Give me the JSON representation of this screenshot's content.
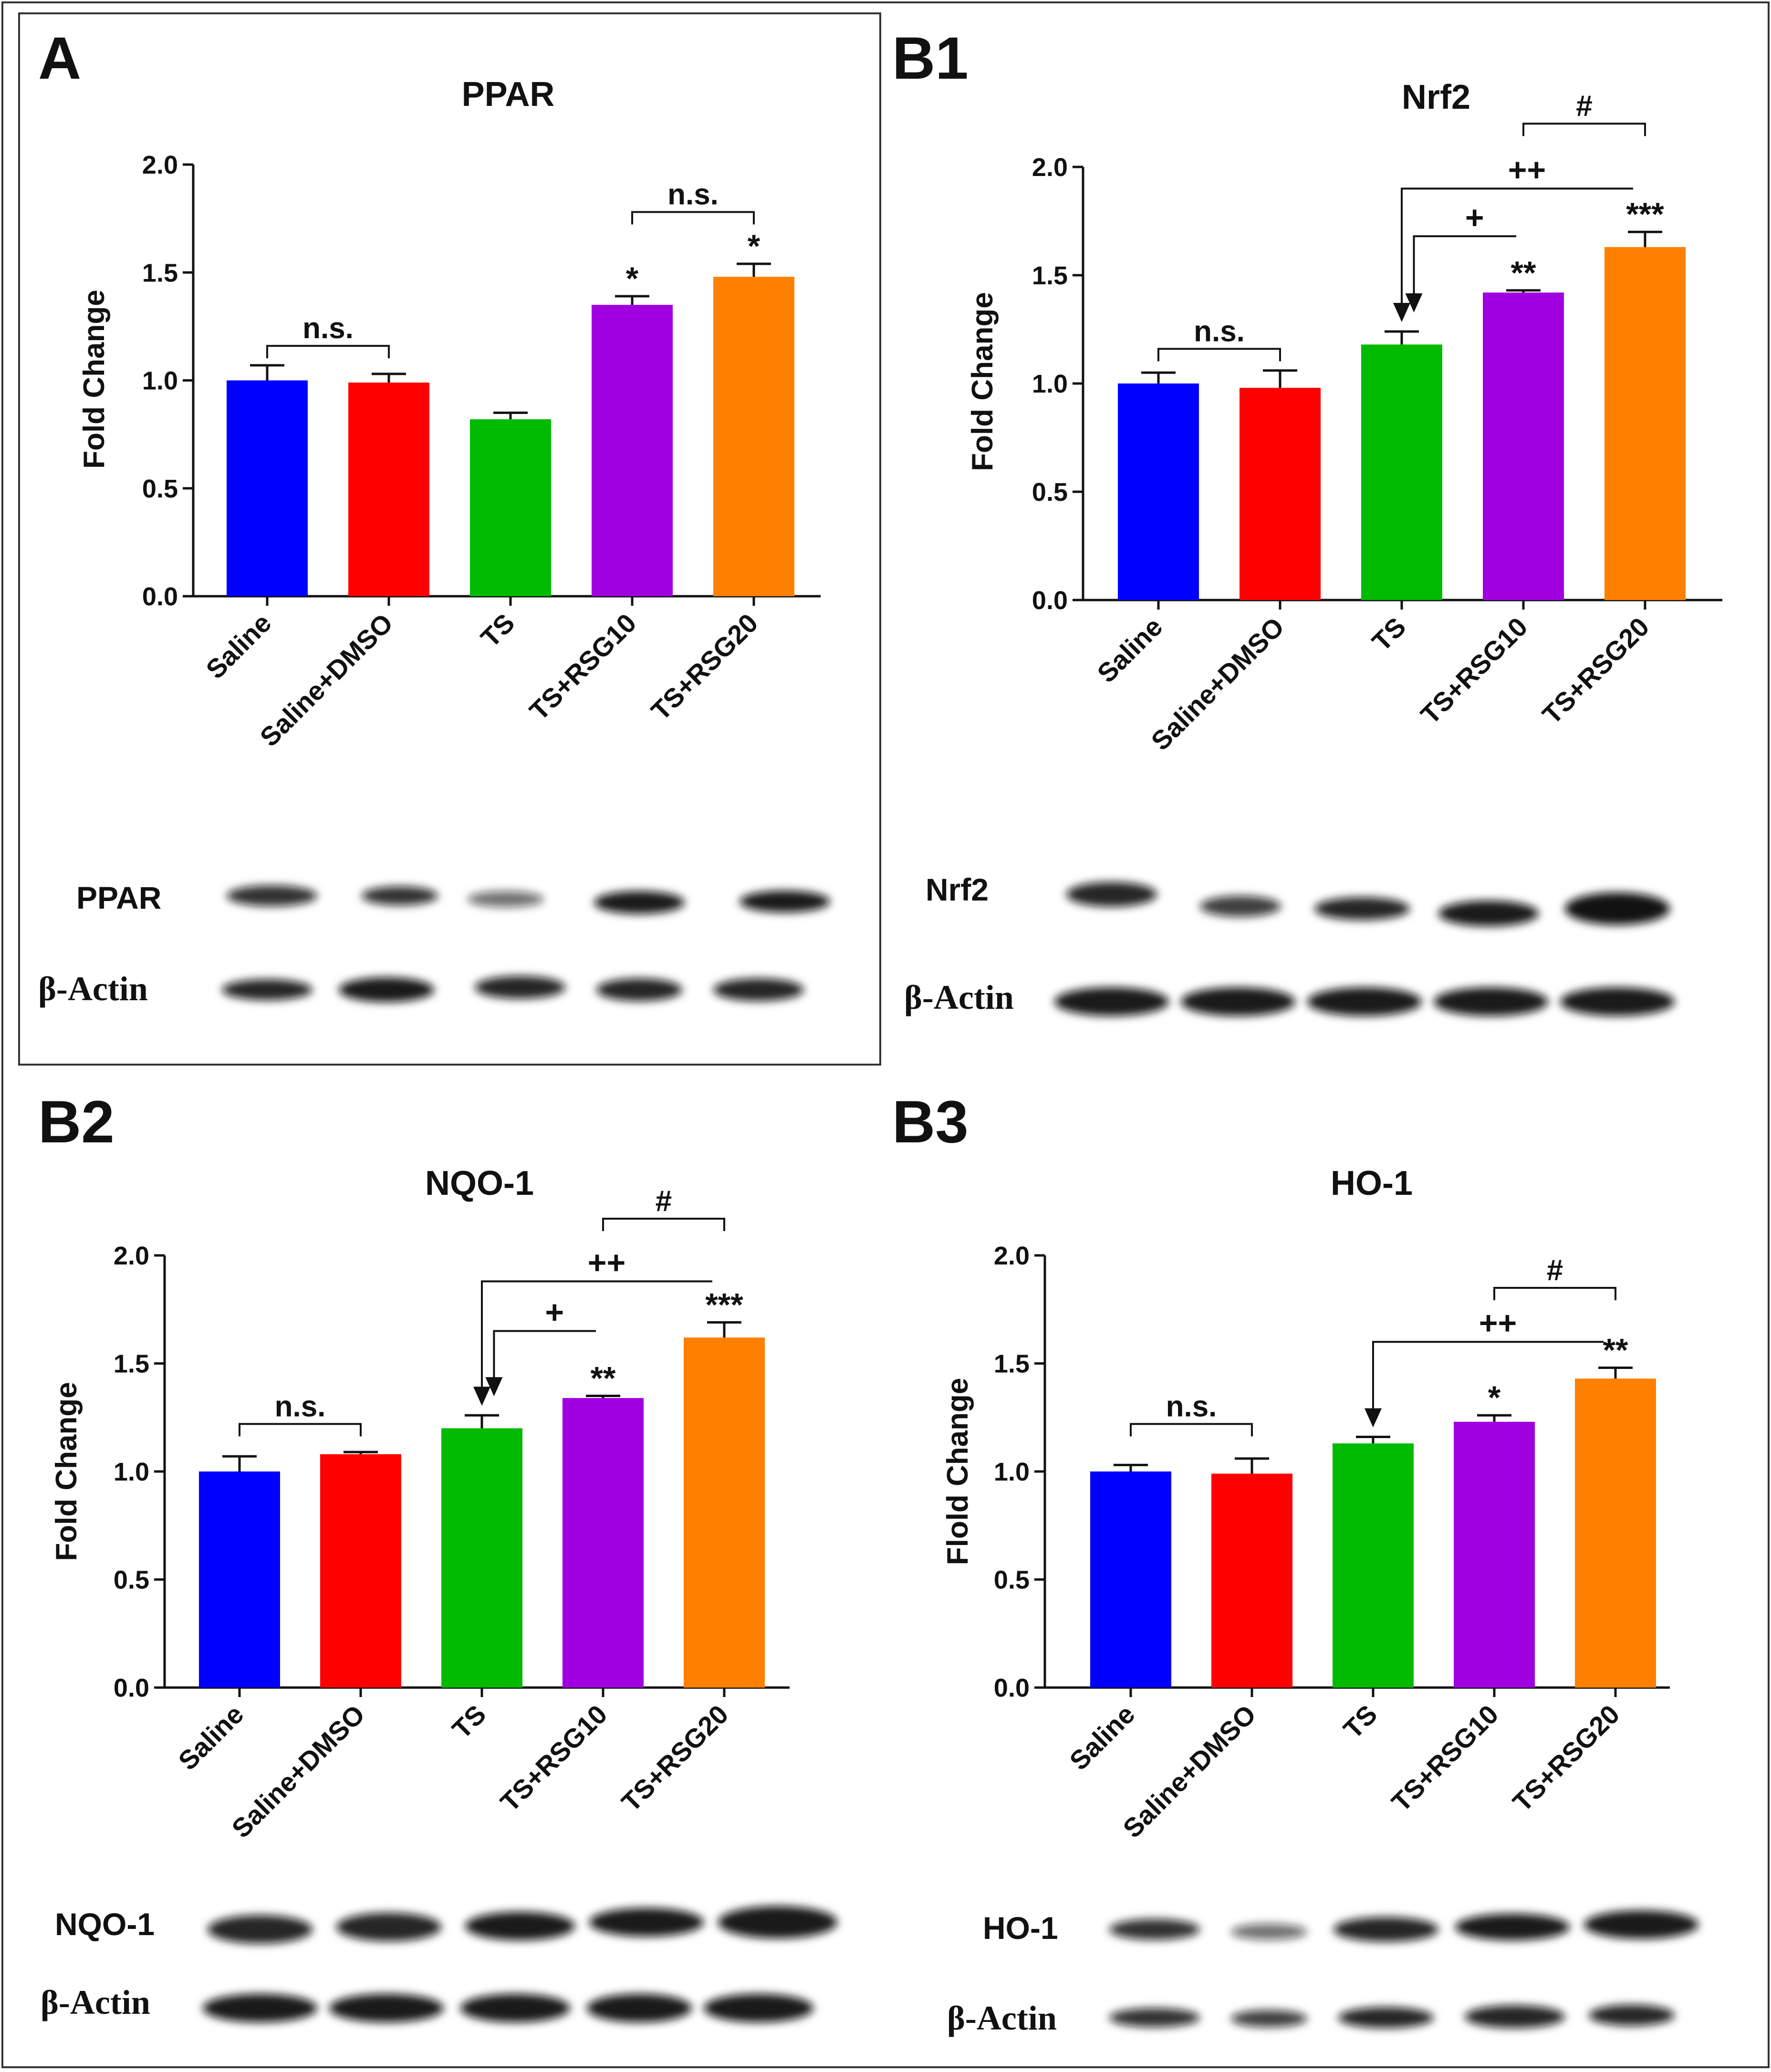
{
  "panels": [
    {
      "id": "A",
      "title": "PPAR",
      "ylabel": "Fold Change",
      "blot_target": "PPAR",
      "blot_actin": "β-Actin"
    },
    {
      "id": "B1",
      "title": "Nrf2",
      "ylabel": "Fold Change",
      "blot_target": "Nrf2",
      "blot_actin": "β-Actin"
    },
    {
      "id": "B2",
      "title": "NQO-1",
      "ylabel": "Fold Change",
      "blot_target": "NQO-1",
      "blot_actin": "β-Actin"
    },
    {
      "id": "B3",
      "title": "HO-1",
      "ylabel": "Flold Change",
      "blot_target": "HO-1",
      "blot_actin": "β-Actin"
    }
  ],
  "chart_data": [
    {
      "panel": "A",
      "type": "bar",
      "title": "PPAR",
      "xlabel": "",
      "ylabel": "Fold Change",
      "ylim": [
        0,
        2.0
      ],
      "yticks": [
        "0.0",
        "0.5",
        "1.0",
        "1.5",
        "2.0"
      ],
      "categories": [
        "Saline",
        "Saline+DMSO",
        "TS",
        "TS+RSG10",
        "TS+RSG20"
      ],
      "values": [
        1.0,
        0.99,
        0.82,
        1.35,
        1.48
      ],
      "errors": [
        0.07,
        0.04,
        0.03,
        0.04,
        0.06
      ],
      "colors": [
        "#0000ff",
        "#ff0000",
        "#00bb00",
        "#a000e0",
        "#ff8000"
      ],
      "stars": [
        "",
        "",
        "",
        "*",
        "*"
      ],
      "brackets": [
        {
          "from": 0,
          "to": 1,
          "label": "n.s.",
          "y": 1.16
        },
        {
          "from": 3,
          "to": 4,
          "label": "n.s.",
          "y": 1.78
        }
      ],
      "arrows": []
    },
    {
      "panel": "B1",
      "type": "bar",
      "title": "Nrf2",
      "xlabel": "",
      "ylabel": "Fold Change",
      "ylim": [
        0,
        2.0
      ],
      "yticks": [
        "0.0",
        "0.5",
        "1.0",
        "1.5",
        "2.0"
      ],
      "categories": [
        "Saline",
        "Saline+DMSO",
        "TS",
        "TS+RSG10",
        "TS+RSG20"
      ],
      "values": [
        1.0,
        0.98,
        1.18,
        1.42,
        1.63
      ],
      "errors": [
        0.05,
        0.08,
        0.06,
        0.01,
        0.07
      ],
      "colors": [
        "#0000ff",
        "#ff0000",
        "#00bb00",
        "#a000e0",
        "#ff8000"
      ],
      "stars": [
        "",
        "",
        "",
        "**",
        "***"
      ],
      "brackets": [
        {
          "from": 0,
          "to": 1,
          "label": "n.s.",
          "y": 1.16
        },
        {
          "from": 3,
          "to": 4,
          "label": "#",
          "y": 2.2
        }
      ],
      "arrows": [
        {
          "to_bar": 2,
          "from_bar": 3,
          "label": "+",
          "y": 1.68,
          "x_offset": 0.1
        },
        {
          "to_bar": 2,
          "from_bar": 4,
          "label": "++",
          "y": 1.9,
          "x_offset": 0
        }
      ]
    },
    {
      "panel": "B2",
      "type": "bar",
      "title": "NQO-1",
      "xlabel": "",
      "ylabel": "Fold Change",
      "ylim": [
        0,
        2.0
      ],
      "yticks": [
        "0.0",
        "0.5",
        "1.0",
        "1.5",
        "2.0"
      ],
      "categories": [
        "Saline",
        "Saline+DMSO",
        "TS",
        "TS+RSG10",
        "TS+RSG20"
      ],
      "values": [
        1.0,
        1.08,
        1.2,
        1.34,
        1.62
      ],
      "errors": [
        0.07,
        0.01,
        0.06,
        0.01,
        0.07
      ],
      "colors": [
        "#0000ff",
        "#ff0000",
        "#00bb00",
        "#a000e0",
        "#ff8000"
      ],
      "stars": [
        "",
        "",
        "",
        "**",
        "***"
      ],
      "brackets": [
        {
          "from": 0,
          "to": 1,
          "label": "n.s.",
          "y": 1.22
        },
        {
          "from": 3,
          "to": 4,
          "label": "#",
          "y": 2.17
        }
      ],
      "arrows": [
        {
          "to_bar": 2,
          "from_bar": 3,
          "label": "+",
          "y": 1.65,
          "x_offset": 0.1
        },
        {
          "to_bar": 2,
          "from_bar": 4,
          "label": "++",
          "y": 1.88,
          "x_offset": 0
        }
      ]
    },
    {
      "panel": "B3",
      "type": "bar",
      "title": "HO-1",
      "xlabel": "",
      "ylabel": "Flold Change",
      "ylim": [
        0,
        2.0
      ],
      "yticks": [
        "0.0",
        "0.5",
        "1.0",
        "1.5",
        "2.0"
      ],
      "categories": [
        "Saline",
        "Saline+DMSO",
        "TS",
        "TS+RSG10",
        "TS+RSG20"
      ],
      "values": [
        1.0,
        0.99,
        1.13,
        1.23,
        1.43
      ],
      "errors": [
        0.03,
        0.07,
        0.03,
        0.03,
        0.05
      ],
      "colors": [
        "#0000ff",
        "#ff0000",
        "#00bb00",
        "#a000e0",
        "#ff8000"
      ],
      "stars": [
        "",
        "",
        "",
        "*",
        "**"
      ],
      "brackets": [
        {
          "from": 0,
          "to": 1,
          "label": "n.s.",
          "y": 1.22
        },
        {
          "from": 3,
          "to": 4,
          "label": "#",
          "y": 1.85
        }
      ],
      "arrows": [
        {
          "to_bar": 2,
          "from_bar": 4,
          "label": "++",
          "y": 1.6,
          "x_offset": 0
        }
      ]
    }
  ]
}
